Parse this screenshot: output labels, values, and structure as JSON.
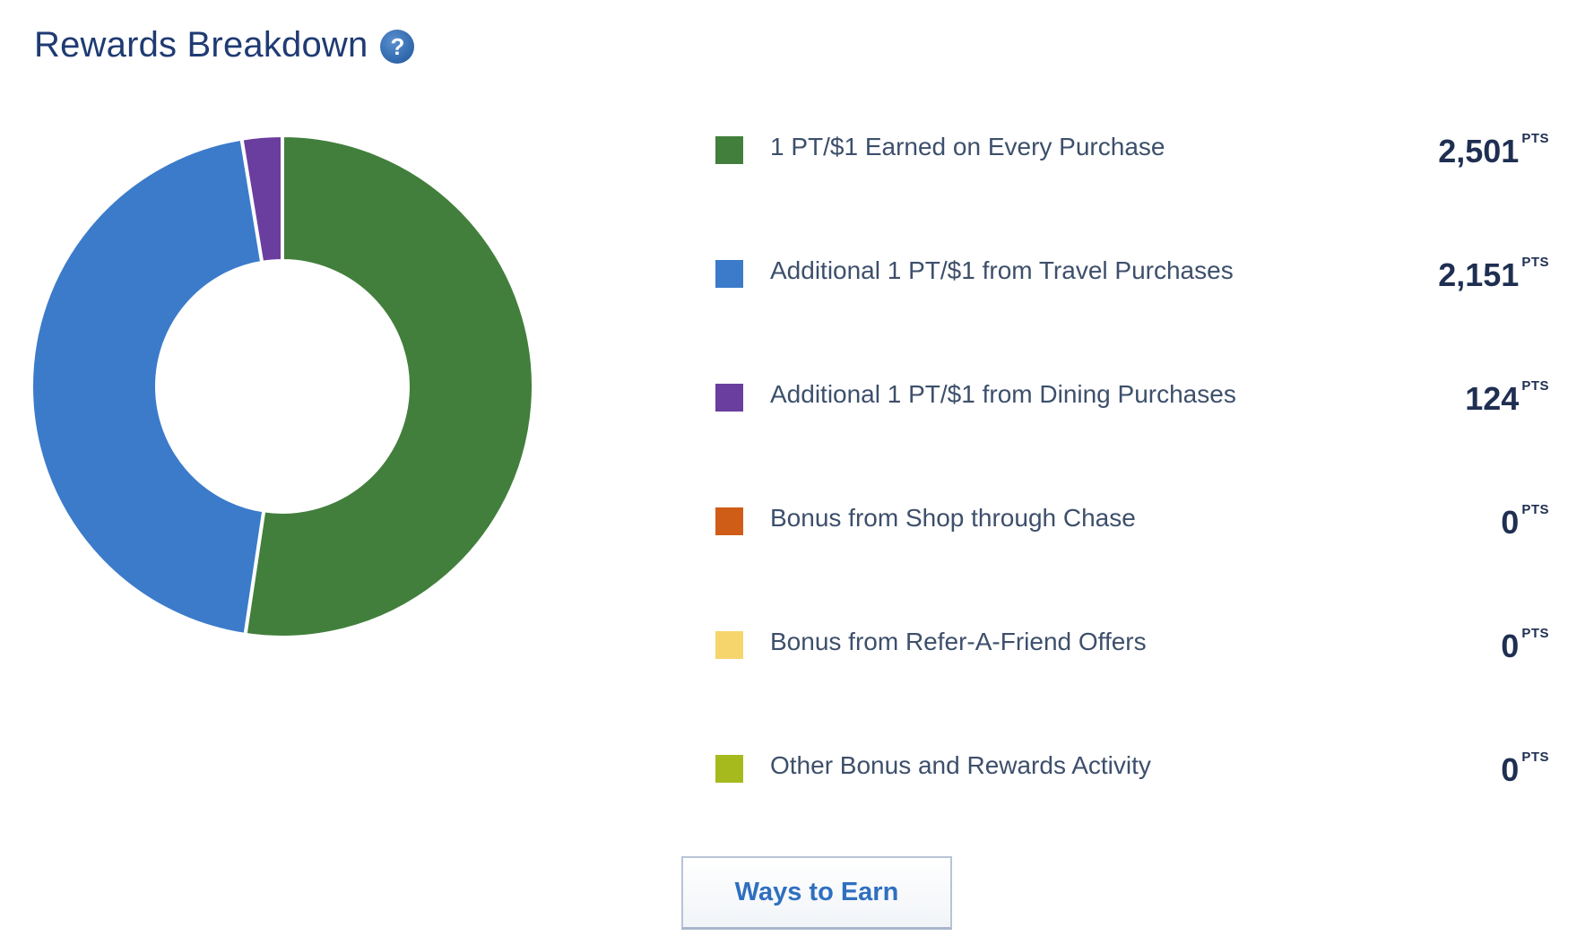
{
  "header": {
    "title": "Rewards Breakdown",
    "help_icon": "question-circle-icon",
    "help_glyph": "?"
  },
  "chart_data": {
    "type": "pie",
    "style": "donut",
    "unit": "PTS",
    "categories": [
      "1 PT/$1 Earned on Every Purchase",
      "Additional 1 PT/$1 from Travel Purchases",
      "Additional 1 PT/$1 from Dining Purchases",
      "Bonus from Shop through Chase",
      "Bonus from Refer-A-Friend Offers",
      "Other Bonus and Rewards Activity"
    ],
    "values": [
      2501,
      2151,
      124,
      0,
      0,
      0
    ],
    "display_values": [
      "2,501",
      "2,151",
      "124",
      "0",
      "0",
      "0"
    ],
    "colors": [
      "#427f3c",
      "#3b7bca",
      "#6a3e9e",
      "#cf5d17",
      "#f7d56d",
      "#a6ba1d"
    ]
  },
  "actions": {
    "ways_to_earn_label": "Ways to Earn"
  }
}
